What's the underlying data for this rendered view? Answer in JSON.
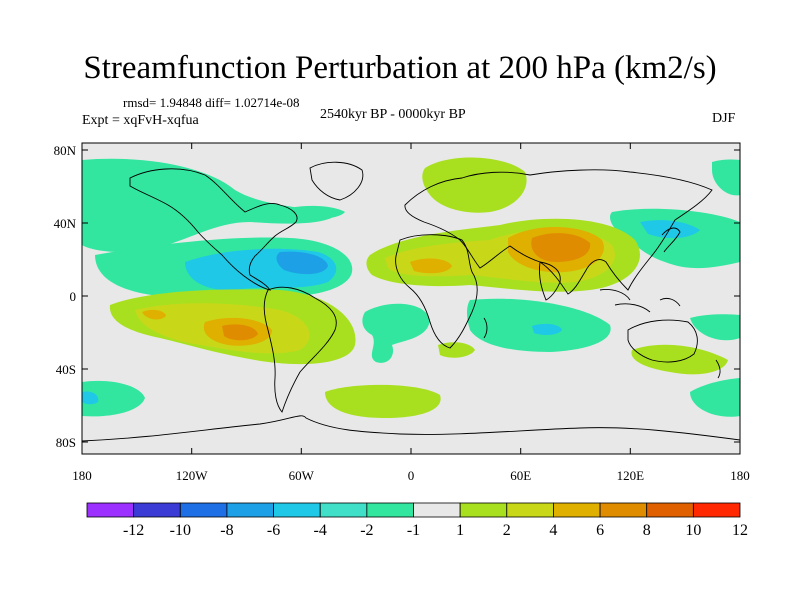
{
  "title": "Streamfunction Perturbation at 200 hPa (km2/s)",
  "stats_line": "rmsd= 1.94848 diff= 1.02714e-08",
  "period": "2540kyr BP - 0000kyr BP",
  "experiment": "Expt = xqFvH-xqfua",
  "season": "DJF",
  "lat_ticks": [
    "80N",
    "40N",
    "0",
    "40S",
    "80S"
  ],
  "lon_ticks": [
    "180",
    "120W",
    "60W",
    "0",
    "60E",
    "120E",
    "180"
  ],
  "colorbar": {
    "labels": [
      "-12",
      "-10",
      "-8",
      "-6",
      "-4",
      "-2",
      "-1",
      "1",
      "2",
      "4",
      "6",
      "8",
      "10",
      "12"
    ],
    "colors": [
      "#9b30ff",
      "#3b3bd6",
      "#1e6ee6",
      "#1ea0e6",
      "#1ec8e6",
      "#40e0c8",
      "#33e6a0",
      "#e8e8e8",
      "#a8e020",
      "#c8d818",
      "#e0b000",
      "#e08c00",
      "#e06000",
      "#ff2800"
    ]
  }
}
